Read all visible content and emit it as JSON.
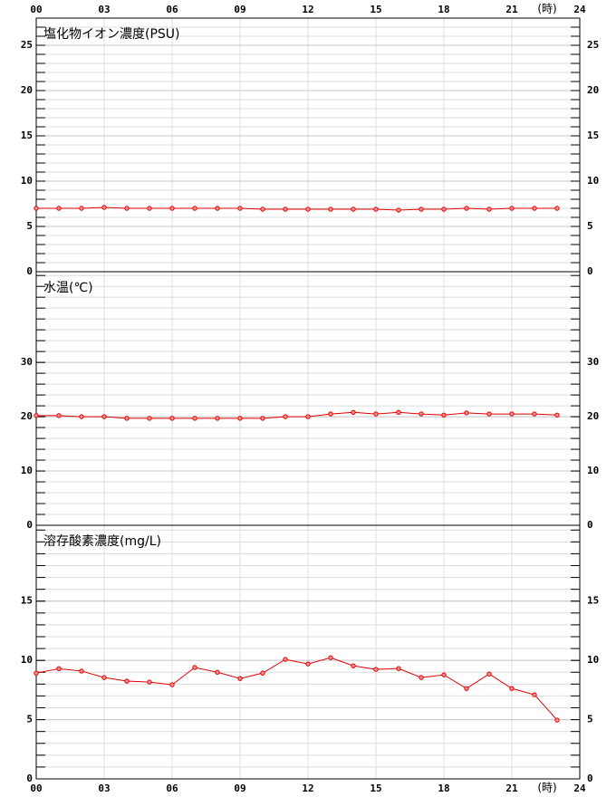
{
  "chart_data": [
    {
      "type": "line",
      "title": "塩化物イオン濃度(PSU)",
      "xlabel": "(時)",
      "x": [
        0,
        1,
        2,
        3,
        4,
        5,
        6,
        7,
        8,
        9,
        10,
        11,
        12,
        13,
        14,
        15,
        16,
        17,
        18,
        19,
        20,
        21,
        22,
        23
      ],
      "xlim": [
        0,
        24
      ],
      "xticks": [
        {
          "value": 0,
          "label": "00"
        },
        {
          "value": 3,
          "label": "03"
        },
        {
          "value": 6,
          "label": "06"
        },
        {
          "value": 9,
          "label": "09"
        },
        12,
        15,
        18,
        21,
        24
      ],
      "ylim": [
        0,
        28
      ],
      "yticks": [
        0,
        5,
        10,
        15,
        20,
        25
      ],
      "grid": true,
      "series": [
        {
          "color": "#e00000",
          "values": [
            7.0,
            7.0,
            7.0,
            7.1,
            7.0,
            7.0,
            7.0,
            7.0,
            7.0,
            7.0,
            6.9,
            6.9,
            6.9,
            6.9,
            6.9,
            6.9,
            6.8,
            6.9,
            6.9,
            7.0,
            6.9,
            7.0,
            7.0,
            7.0
          ]
        }
      ]
    },
    {
      "type": "line",
      "title": "水温(℃)",
      "x": [
        0,
        1,
        2,
        3,
        4,
        5,
        6,
        7,
        8,
        9,
        10,
        11,
        12,
        13,
        14,
        15,
        16,
        17,
        18,
        19,
        20,
        21,
        22,
        23
      ],
      "xlim": [
        0,
        24
      ],
      "xticks": [
        {
          "value": 0,
          "label": "00"
        },
        {
          "value": 3,
          "label": "03"
        },
        {
          "value": 6,
          "label": "06"
        },
        {
          "value": 9,
          "label": "09"
        },
        12,
        15,
        18,
        21,
        24
      ],
      "ylim": [
        0,
        46.7
      ],
      "yticks": [
        0,
        10,
        20,
        30
      ],
      "grid": true,
      "series": [
        {
          "color": "#e00000",
          "values": [
            20.2,
            20.2,
            20.0,
            20.0,
            19.7,
            19.7,
            19.7,
            19.7,
            19.7,
            19.7,
            19.7,
            20.0,
            20.0,
            20.5,
            20.8,
            20.5,
            20.8,
            20.5,
            20.3,
            20.7,
            20.5,
            20.5,
            20.5,
            20.3
          ]
        }
      ]
    },
    {
      "type": "line",
      "title": "溶存酸素濃度(mg/L)",
      "xlabel": "(時)",
      "x": [
        0,
        1,
        2,
        3,
        4,
        5,
        6,
        7,
        8,
        9,
        10,
        11,
        12,
        13,
        14,
        15,
        16,
        17,
        18,
        19,
        20,
        21,
        22,
        23
      ],
      "xlim": [
        0,
        24
      ],
      "xticks": [
        {
          "value": 0,
          "label": "00"
        },
        {
          "value": 3,
          "label": "03"
        },
        {
          "value": 6,
          "label": "06"
        },
        {
          "value": 9,
          "label": "09"
        },
        12,
        15,
        18,
        21,
        24
      ],
      "ylim": [
        0,
        21.4
      ],
      "yticks": [
        0,
        5,
        10,
        15
      ],
      "grid": true,
      "series": [
        {
          "color": "#e00000",
          "values": [
            8.93,
            9.3,
            9.1,
            8.55,
            8.25,
            8.17,
            7.94,
            9.4,
            9.0,
            8.47,
            8.93,
            10.08,
            9.7,
            10.23,
            9.54,
            9.24,
            9.31,
            8.55,
            8.78,
            7.63,
            8.85,
            7.63,
            7.1,
            4.96
          ]
        }
      ]
    }
  ]
}
